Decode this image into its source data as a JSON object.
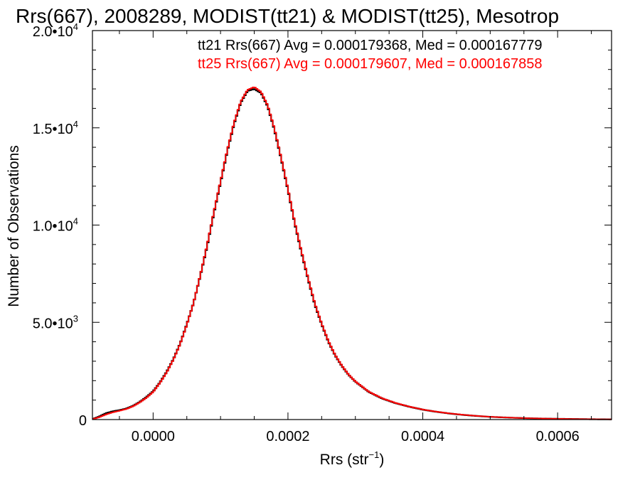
{
  "chart_data": {
    "type": "line",
    "title": "Rrs(667), 2008289, MODIST(tt21) & MODIST(tt25), Mesotrop",
    "xlabel_main": "Rrs (str",
    "xlabel_sup": "−1",
    "xlabel_tail": ")",
    "ylabel": "Number of Observations",
    "xlim": [
      -9e-05,
      0.00068
    ],
    "ylim": [
      0,
      20000
    ],
    "x_ticks": [
      {
        "value": 0.0,
        "label": "0.0000"
      },
      {
        "value": 0.0002,
        "label": "0.0002"
      },
      {
        "value": 0.0004,
        "label": "0.0004"
      },
      {
        "value": 0.0006,
        "label": "0.0006"
      }
    ],
    "y_ticks": [
      {
        "value": 0,
        "label": "0",
        "sup": ""
      },
      {
        "value": 5000,
        "label": "5.0•10",
        "sup": "3"
      },
      {
        "value": 10000,
        "label": "1.0•10",
        "sup": "4"
      },
      {
        "value": 15000,
        "label": "1.5•10",
        "sup": "4"
      },
      {
        "value": 20000,
        "label": "2.0•10",
        "sup": "4"
      }
    ],
    "legend_position": "top-right",
    "series": [
      {
        "name": "tt21",
        "color": "#000000",
        "legend": "tt21 Rrs(667) Avg = 0.000179368, Med = 0.000167779",
        "x": [
          -9e-05,
          -8e-05,
          -7e-05,
          -6e-05,
          -5e-05,
          -4e-05,
          -3e-05,
          -2e-05,
          -1e-05,
          0.0,
          1e-05,
          2e-05,
          3e-05,
          4e-05,
          5e-05,
          6e-05,
          7e-05,
          8e-05,
          9e-05,
          0.0001,
          0.00011,
          0.00012,
          0.00013,
          0.00014,
          0.00015,
          0.00016,
          0.00017,
          0.00018,
          0.00019,
          0.0002,
          0.00021,
          0.00022,
          0.00023,
          0.00024,
          0.00025,
          0.00026,
          0.00027,
          0.00028,
          0.00029,
          0.0003,
          0.00032,
          0.00034,
          0.00036,
          0.00038,
          0.0004,
          0.00042,
          0.00044,
          0.00046,
          0.00048,
          0.0005,
          0.00052,
          0.00054,
          0.00056,
          0.00058,
          0.0006,
          0.00062,
          0.00064,
          0.00066,
          0.00068
        ],
        "y": [
          20,
          150,
          320,
          420,
          480,
          560,
          700,
          900,
          1150,
          1450,
          1900,
          2450,
          3100,
          3900,
          4900,
          6000,
          7400,
          8900,
          10600,
          12200,
          13800,
          15200,
          16300,
          16900,
          17000,
          16800,
          16100,
          14900,
          13400,
          11800,
          10100,
          8600,
          7200,
          5900,
          4900,
          4000,
          3300,
          2750,
          2300,
          1950,
          1420,
          1080,
          840,
          660,
          510,
          400,
          310,
          240,
          185,
          140,
          110,
          85,
          65,
          50,
          40,
          30,
          22,
          15,
          10
        ]
      },
      {
        "name": "tt25",
        "color": "#ff0000",
        "legend": "tt25 Rrs(667) Avg = 0.000179607, Med = 0.000167858",
        "x": [
          -9e-05,
          -8e-05,
          -7e-05,
          -6e-05,
          -5e-05,
          -4e-05,
          -3e-05,
          -2e-05,
          -1e-05,
          0.0,
          1e-05,
          2e-05,
          3e-05,
          4e-05,
          5e-05,
          6e-05,
          7e-05,
          8e-05,
          9e-05,
          0.0001,
          0.00011,
          0.00012,
          0.00013,
          0.00014,
          0.00015,
          0.00016,
          0.00017,
          0.00018,
          0.00019,
          0.0002,
          0.00021,
          0.00022,
          0.00023,
          0.00024,
          0.00025,
          0.00026,
          0.00027,
          0.00028,
          0.00029,
          0.0003,
          0.00032,
          0.00034,
          0.00036,
          0.00038,
          0.0004,
          0.00042,
          0.00044,
          0.00046,
          0.00048,
          0.0005,
          0.00052,
          0.00054,
          0.00056,
          0.00058,
          0.0006,
          0.00062,
          0.00064,
          0.00066,
          0.00068
        ],
        "y": [
          20,
          120,
          260,
          370,
          450,
          540,
          680,
          880,
          1120,
          1420,
          1880,
          2420,
          3080,
          3880,
          4880,
          6000,
          7420,
          8950,
          10650,
          12250,
          13850,
          15250,
          16350,
          16950,
          17100,
          16850,
          16150,
          14950,
          13450,
          11850,
          10150,
          8650,
          7250,
          5950,
          4930,
          4030,
          3320,
          2770,
          2310,
          1960,
          1430,
          1090,
          850,
          665,
          515,
          405,
          315,
          245,
          188,
          142,
          112,
          86,
          66,
          51,
          41,
          31,
          23,
          16,
          11
        ]
      }
    ]
  }
}
